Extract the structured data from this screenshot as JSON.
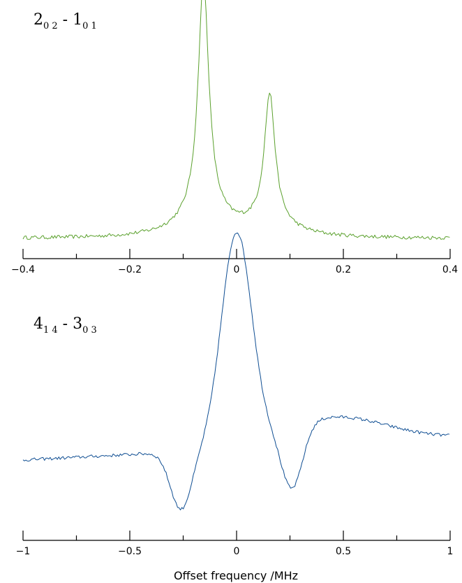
{
  "chart_data": [
    {
      "type": "line",
      "annotation": {
        "main1": "2",
        "sub1": "0 2",
        "sep": " - ",
        "main2": "1",
        "sub2": "0 1"
      },
      "xlim": [
        -0.4,
        0.4
      ],
      "xticks": [
        -0.4,
        -0.2,
        0,
        0.2,
        0.4
      ],
      "xtick_labels": [
        "−0.4",
        "−0.2",
        "0",
        "0.2",
        "0.4"
      ],
      "minor_step": 0.1,
      "xlabel": "",
      "ylim": [
        0,
        1
      ],
      "y_axis_shown": false,
      "grid": false,
      "color": "#5aa02c",
      "profile": {
        "kind": "doublet",
        "centers": [
          -0.062,
          0.062
        ],
        "heights": [
          1.0,
          0.55
        ],
        "width": 0.012,
        "wing_width": 0.05,
        "wing_height": 0.1,
        "baseline": 0.02,
        "noise": 0.008,
        "x_step": 0.0027
      },
      "series": [
        {
          "x": [
            -0.4,
            -0.2,
            -0.1,
            -0.08,
            -0.07,
            -0.062,
            -0.055,
            -0.04,
            -0.02,
            0,
            0.02,
            0.04,
            0.05,
            0.057,
            0.062,
            0.066,
            0.075,
            0.09,
            0.1,
            0.2,
            0.4
          ],
          "y": [
            0.015,
            0.02,
            0.06,
            0.15,
            0.4,
            1.0,
            0.45,
            0.18,
            0.11,
            0.085,
            0.11,
            0.16,
            0.24,
            0.45,
            0.55,
            0.45,
            0.18,
            0.07,
            0.045,
            0.01,
            0.01
          ]
        }
      ]
    },
    {
      "type": "line",
      "annotation": {
        "main1": "4",
        "sub1": "1 4",
        "sep": " - ",
        "main2": "3",
        "sub2": "0 3"
      },
      "xlim": [
        -1,
        1
      ],
      "xticks": [
        -1,
        -0.5,
        0,
        0.5,
        1
      ],
      "xtick_labels": [
        "−1",
        "−0.5",
        "0",
        "0.5",
        "1"
      ],
      "minor_step": 0.25,
      "xlabel": "Offset frequency /MHz",
      "ylim": [
        0,
        1
      ],
      "y_axis_shown": false,
      "grid": false,
      "color": "#0e4d92",
      "profile": {
        "kind": "dispersive",
        "center": 0.0,
        "peak_width": 0.1,
        "dip_offset": 0.26,
        "dip_width": 0.07,
        "baseline_left": 0.31,
        "baseline_right": 0.41,
        "noise": 0.007,
        "x_step": 0.0067
      },
      "series": [
        {
          "x": [
            -1,
            -0.8,
            -0.5,
            -0.4,
            -0.3,
            -0.26,
            -0.2,
            -0.1,
            0,
            0.1,
            0.2,
            0.26,
            0.3,
            0.4,
            0.5,
            0.8,
            1
          ],
          "y": [
            0.31,
            0.31,
            0.28,
            0.25,
            0.12,
            0.07,
            0.16,
            0.7,
            1.0,
            0.72,
            0.2,
            0.1,
            0.13,
            0.23,
            0.32,
            0.37,
            0.41
          ]
        }
      ]
    }
  ]
}
